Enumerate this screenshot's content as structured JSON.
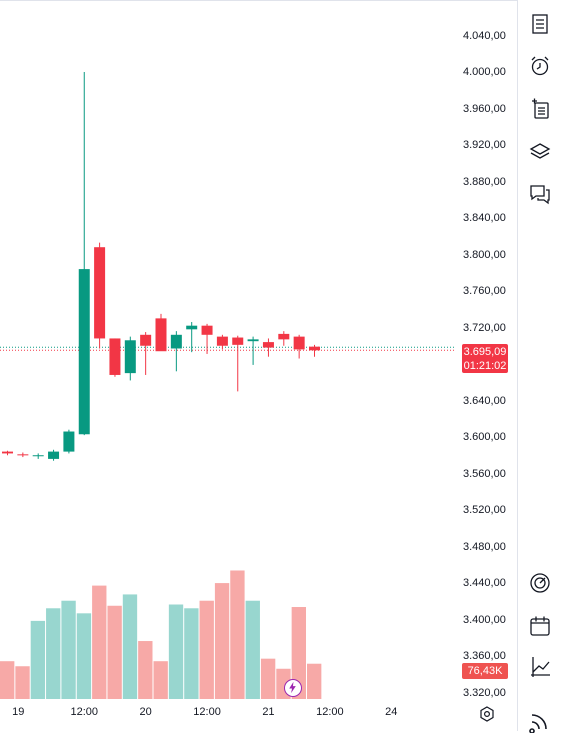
{
  "chart_data": {
    "type": "candlestick",
    "price_axis": {
      "range": [
        3300,
        4080
      ],
      "ticks": [
        "4.040,00",
        "4.000,00",
        "3.960,00",
        "3.920,00",
        "3.880,00",
        "3.840,00",
        "3.800,00",
        "3.760,00",
        "3.720,00",
        "3.680,00",
        "3.640,00",
        "3.600,00",
        "3.560,00",
        "3.520,00",
        "3.480,00",
        "3.440,00",
        "3.400,00",
        "3.360,00",
        "3.320,00"
      ],
      "tick_values": [
        4040,
        4000,
        3960,
        3920,
        3880,
        3840,
        3800,
        3760,
        3720,
        3680,
        3640,
        3600,
        3560,
        3520,
        3480,
        3440,
        3400,
        3360,
        3320
      ]
    },
    "time_axis": {
      "labels": [
        "19",
        "12:00",
        "20",
        "12:00",
        "21",
        "12:00",
        "24"
      ],
      "label_slots": [
        0.7,
        5,
        9,
        13,
        17,
        21,
        25
      ]
    },
    "candles": [
      {
        "o": 3584,
        "h": 3585,
        "l": 3580,
        "c": 3582,
        "v": 30
      },
      {
        "o": 3581,
        "h": 3583,
        "l": 3578,
        "c": 3580,
        "v": 26
      },
      {
        "o": 3580,
        "h": 3582,
        "l": 3576,
        "c": 3580,
        "v": 62
      },
      {
        "o": 3576,
        "h": 3586,
        "l": 3574,
        "c": 3584,
        "v": 72
      },
      {
        "o": 3584,
        "h": 3608,
        "l": 3582,
        "c": 3606,
        "v": 78
      },
      {
        "o": 3603,
        "h": 4000,
        "l": 3602,
        "c": 3784,
        "v": 68
      },
      {
        "o": 3808,
        "h": 3813,
        "l": 3697,
        "c": 3708,
        "v": 90
      },
      {
        "o": 3708,
        "h": 3708,
        "l": 3666,
        "c": 3668,
        "v": 74
      },
      {
        "o": 3670,
        "h": 3710,
        "l": 3662,
        "c": 3706,
        "v": 83
      },
      {
        "o": 3712,
        "h": 3715,
        "l": 3668,
        "c": 3700,
        "v": 46
      },
      {
        "o": 3730,
        "h": 3735,
        "l": 3695,
        "c": 3694,
        "v": 30
      },
      {
        "o": 3697,
        "h": 3716,
        "l": 3672,
        "c": 3712,
        "v": 75
      },
      {
        "o": 3718,
        "h": 3726,
        "l": 3693,
        "c": 3722,
        "v": 72
      },
      {
        "o": 3722,
        "h": 3724,
        "l": 3691,
        "c": 3712,
        "v": 78
      },
      {
        "o": 3710,
        "h": 3712,
        "l": 3696,
        "c": 3700,
        "v": 92
      },
      {
        "o": 3709,
        "h": 3711,
        "l": 3650,
        "c": 3701,
        "v": 102
      },
      {
        "o": 3705,
        "h": 3710,
        "l": 3679,
        "c": 3707,
        "v": 78
      },
      {
        "o": 3704,
        "h": 3708,
        "l": 3688,
        "c": 3698,
        "v": 32
      },
      {
        "o": 3713,
        "h": 3716,
        "l": 3700,
        "c": 3707,
        "v": 24
      },
      {
        "o": 3710,
        "h": 3712,
        "l": 3686,
        "c": 3696,
        "v": 73
      },
      {
        "o": 3699,
        "h": 3701,
        "l": 3688,
        "c": 3695,
        "v": 28
      }
    ],
    "last_price": "3.695,09",
    "last_price_value": 3695.09,
    "countdown": "01:21:02",
    "volume_label": "76,43K",
    "colors": {
      "up": "#089981",
      "down": "#f23645",
      "up_volume": "#98d6cf",
      "down_volume": "#f7a9a7",
      "price_line": "#f23645",
      "last_close_line": "#089981"
    }
  },
  "toolbar": {
    "icons": [
      "watchlist-icon",
      "alert-clock-icon",
      "add-list-icon",
      "layers-icon",
      "chat-icon",
      "target-icon",
      "calendar-icon",
      "trend-line-icon",
      "broadcast-icon"
    ]
  },
  "settings_icon": "settings-icon",
  "flash_icon": "lightning-icon"
}
